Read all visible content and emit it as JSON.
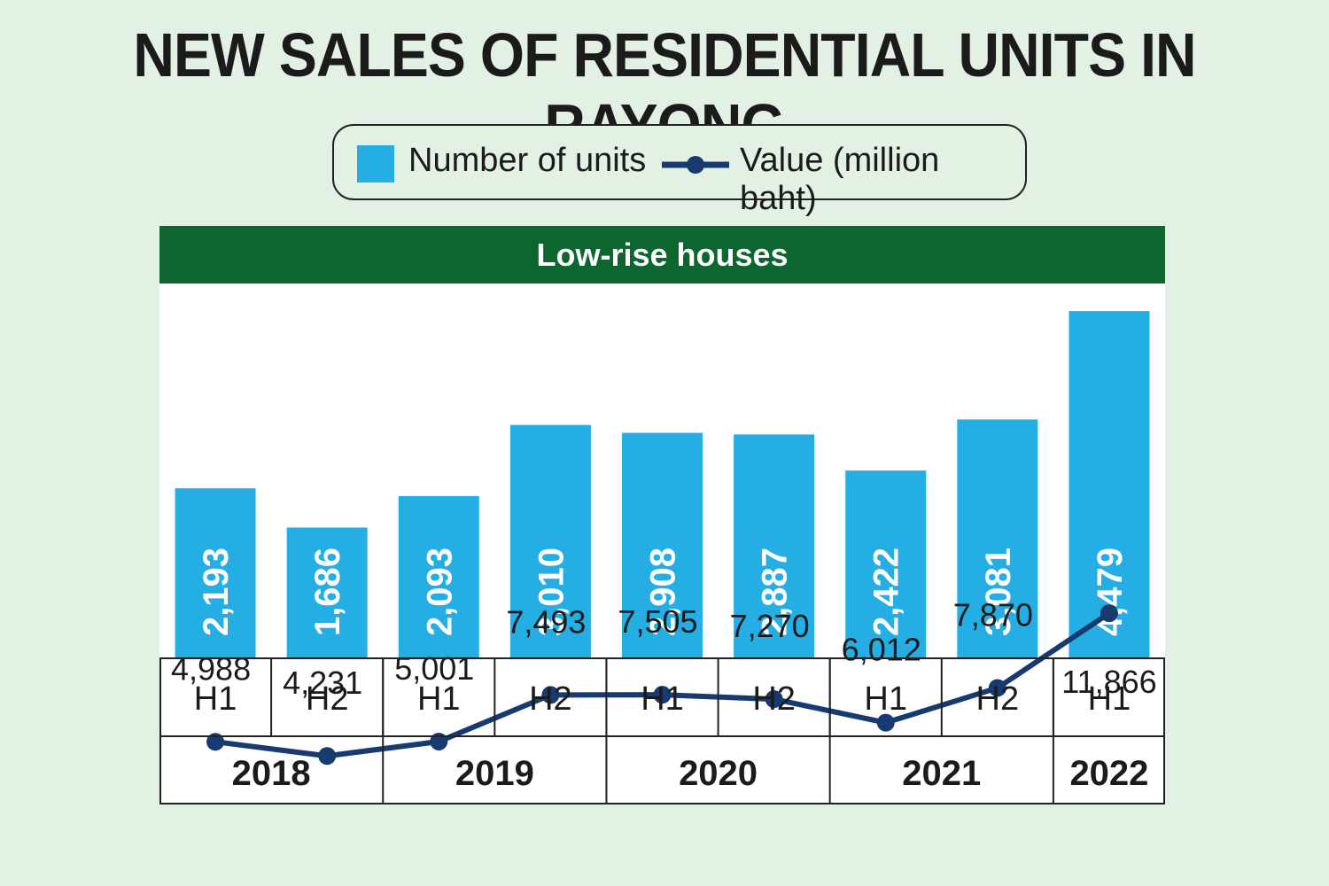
{
  "title": "NEW SALES OF RESIDENTIAL UNITS IN RAYONG",
  "legend": {
    "units_label": "Number of units",
    "value_label": "Value (million baht)"
  },
  "panel_title": "Low-rise houses",
  "colors": {
    "background": "#e3f1e5",
    "bar": "#24aee4",
    "line": "#173a70",
    "header": "#0d6630"
  },
  "chart_data": {
    "type": "bar",
    "categories": [
      "H1",
      "H2",
      "H1",
      "H2",
      "H1",
      "H2",
      "H1",
      "H2",
      "H1"
    ],
    "years": [
      {
        "label": "2018",
        "span": 2
      },
      {
        "label": "2019",
        "span": 2
      },
      {
        "label": "2020",
        "span": 2
      },
      {
        "label": "2021",
        "span": 2
      },
      {
        "label": "2022",
        "span": 1
      }
    ],
    "series": [
      {
        "name": "Number of units",
        "type": "bar",
        "values": [
          2193,
          1686,
          2093,
          3010,
          2908,
          2887,
          2422,
          3081,
          4479
        ],
        "labels": [
          "2,193",
          "1,686",
          "2,093",
          "3,010",
          "2,908",
          "2,887",
          "2,422",
          "3,081",
          "4,479"
        ]
      },
      {
        "name": "Value (million baht)",
        "type": "line",
        "values": [
          4988,
          4231,
          5001,
          7493,
          7505,
          7270,
          6012,
          7870,
          11866
        ],
        "labels": [
          "4,988",
          "4,231",
          "5,001",
          "7,493",
          "7,505",
          "7,270",
          "6,012",
          "7,870",
          "11,866"
        ]
      }
    ],
    "legend_position": "top",
    "grid": false
  }
}
